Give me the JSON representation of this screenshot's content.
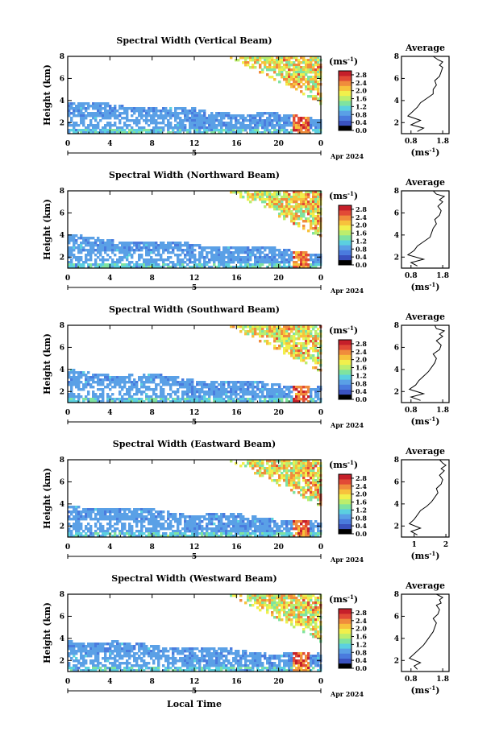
{
  "figure": {
    "xlabel": "Local Time",
    "date_label": "Apr 2024",
    "day_label": "5",
    "colorbar_unit": "(ms",
    "avg_title": "Average",
    "avg_xlabel": "(ms",
    "unit_exponent": "-1",
    "ylabel": "Height (km)",
    "colors": {
      "scale": [
        "#000000",
        "#3a52c0",
        "#4a7bde",
        "#5aa0e6",
        "#5bd0e0",
        "#7fe3a0",
        "#bdee6d",
        "#f1f04c",
        "#f7c23c",
        "#f08c3c",
        "#e24a36",
        "#c61f2a"
      ]
    }
  },
  "chart_data": [
    {
      "type": "heatmap",
      "title": "Spectral Width (Vertical Beam)",
      "ylabel": "Height (km)",
      "x_ticks": [
        "0",
        "4",
        "8",
        "12",
        "16",
        "20",
        "0"
      ],
      "x_range": [
        0,
        24
      ],
      "y_ticks": [
        "2",
        "4",
        "6",
        "8"
      ],
      "y_range": [
        1,
        8
      ],
      "colorbar_ticks": [
        "0.0",
        "0.4",
        "0.8",
        "1.2",
        "1.6",
        "2.0",
        "2.4",
        "2.8"
      ],
      "colorbar_range": [
        0,
        3
      ],
      "avg_profile": {
        "title": "Average",
        "x_ticks": [
          "0.8",
          "1.8"
        ],
        "x_range": [
          0.5,
          2.0
        ],
        "x": [
          1.0,
          1.2,
          0.8,
          1.1,
          0.7,
          0.85,
          1.0,
          1.1,
          1.3,
          1.5,
          1.5,
          1.6,
          1.55,
          1.7,
          1.75,
          1.8,
          1.7,
          1.8,
          1.65,
          1.5
        ],
        "y": [
          1.2,
          1.5,
          1.8,
          2.2,
          2.6,
          3.0,
          3.4,
          3.8,
          4.2,
          4.6,
          5.0,
          5.4,
          5.8,
          6.2,
          6.6,
          7.0,
          7.2,
          7.5,
          7.7,
          8.0
        ]
      }
    },
    {
      "type": "heatmap",
      "title": "Spectral Width (Northward Beam)",
      "ylabel": "Height (km)",
      "x_ticks": [
        "0",
        "4",
        "8",
        "12",
        "16",
        "20",
        "0"
      ],
      "x_range": [
        0,
        24
      ],
      "y_ticks": [
        "2",
        "4",
        "6",
        "8"
      ],
      "y_range": [
        1,
        8
      ],
      "colorbar_ticks": [
        "0.0",
        "0.4",
        "0.8",
        "1.2",
        "1.6",
        "2.0",
        "2.4",
        "2.8"
      ],
      "colorbar_range": [
        0,
        3
      ],
      "avg_profile": {
        "title": "Average",
        "x_ticks": [
          "0.8",
          "1.8"
        ],
        "x_range": [
          0.5,
          2.0
        ],
        "x": [
          1.0,
          0.8,
          1.2,
          0.7,
          0.9,
          1.0,
          1.2,
          1.4,
          1.45,
          1.5,
          1.6,
          1.55,
          1.7,
          1.75,
          1.65,
          1.8,
          1.7,
          1.85,
          1.6,
          1.5
        ],
        "y": [
          1.2,
          1.5,
          1.8,
          2.2,
          2.6,
          3.0,
          3.4,
          3.8,
          4.2,
          4.6,
          5.0,
          5.4,
          5.8,
          6.2,
          6.6,
          7.0,
          7.2,
          7.5,
          7.7,
          8.0
        ]
      }
    },
    {
      "type": "heatmap",
      "title": "Spectral Width (Southward Beam)",
      "ylabel": "Height (km)",
      "x_ticks": [
        "0",
        "4",
        "8",
        "12",
        "16",
        "20",
        "0"
      ],
      "x_range": [
        0,
        24
      ],
      "y_ticks": [
        "2",
        "4",
        "6",
        "8"
      ],
      "y_range": [
        1,
        8
      ],
      "colorbar_ticks": [
        "0.0",
        "0.4",
        "0.8",
        "1.2",
        "1.6",
        "2.0",
        "2.4",
        "2.8"
      ],
      "colorbar_range": [
        0,
        3
      ],
      "avg_profile": {
        "title": "Average",
        "x_ticks": [
          "0.8",
          "1.8"
        ],
        "x_range": [
          0.5,
          2.0
        ],
        "x": [
          1.1,
          0.8,
          1.2,
          0.75,
          0.95,
          1.05,
          1.2,
          1.35,
          1.45,
          1.55,
          1.6,
          1.5,
          1.7,
          1.75,
          1.6,
          1.8,
          1.7,
          1.85,
          1.6,
          1.55
        ],
        "y": [
          1.2,
          1.5,
          1.8,
          2.2,
          2.6,
          3.0,
          3.4,
          3.8,
          4.2,
          4.6,
          5.0,
          5.4,
          5.8,
          6.2,
          6.6,
          7.0,
          7.2,
          7.5,
          7.7,
          8.0
        ]
      }
    },
    {
      "type": "heatmap",
      "title": "Spectral Width (Eastward Beam)",
      "ylabel": "Height (km)",
      "x_ticks": [
        "0",
        "4",
        "8",
        "12",
        "16",
        "20",
        "0"
      ],
      "x_range": [
        0,
        24
      ],
      "y_ticks": [
        "2",
        "4",
        "6",
        "8"
      ],
      "y_range": [
        1,
        8
      ],
      "colorbar_ticks": [
        "0.0",
        "0.4",
        "0.8",
        "1.2",
        "1.6",
        "2.0",
        "2.4",
        "2.8"
      ],
      "colorbar_range": [
        0,
        3
      ],
      "avg_profile": {
        "title": "Average",
        "x_ticks": [
          "1",
          "2"
        ],
        "x_range": [
          0.6,
          2.1
        ],
        "x": [
          1.1,
          0.9,
          1.2,
          0.85,
          1.0,
          1.1,
          1.2,
          1.4,
          1.55,
          1.65,
          1.75,
          1.7,
          1.85,
          1.9,
          1.8,
          1.95,
          1.85,
          2.0,
          1.9,
          1.8
        ],
        "y": [
          1.2,
          1.5,
          1.8,
          2.2,
          2.6,
          3.0,
          3.4,
          3.8,
          4.2,
          4.6,
          5.0,
          5.4,
          5.8,
          6.2,
          6.6,
          7.0,
          7.2,
          7.5,
          7.7,
          8.0
        ]
      }
    },
    {
      "type": "heatmap",
      "title": "Spectral Width (Westward Beam)",
      "ylabel": "Height (km)",
      "x_ticks": [
        "0",
        "4",
        "8",
        "12",
        "16",
        "20",
        "0"
      ],
      "x_range": [
        0,
        24
      ],
      "y_ticks": [
        "2",
        "4",
        "6",
        "8"
      ],
      "y_range": [
        1,
        8
      ],
      "colorbar_ticks": [
        "0.0",
        "0.4",
        "0.8",
        "1.2",
        "1.6",
        "2.0",
        "2.4",
        "2.8"
      ],
      "colorbar_range": [
        0,
        3
      ],
      "avg_profile": {
        "title": "Average",
        "x_ticks": [
          "0.8",
          "1.8"
        ],
        "x_range": [
          0.5,
          2.0
        ],
        "x": [
          1.0,
          0.9,
          1.1,
          0.75,
          0.9,
          1.05,
          1.2,
          1.3,
          1.4,
          1.5,
          1.55,
          1.6,
          1.5,
          1.65,
          1.7,
          1.6,
          1.75,
          1.7,
          1.8,
          1.6
        ],
        "y": [
          1.2,
          1.5,
          1.8,
          2.2,
          2.6,
          3.0,
          3.4,
          3.8,
          4.2,
          4.6,
          5.0,
          5.4,
          5.8,
          6.2,
          6.6,
          7.0,
          7.2,
          7.5,
          7.7,
          8.0
        ]
      }
    }
  ]
}
